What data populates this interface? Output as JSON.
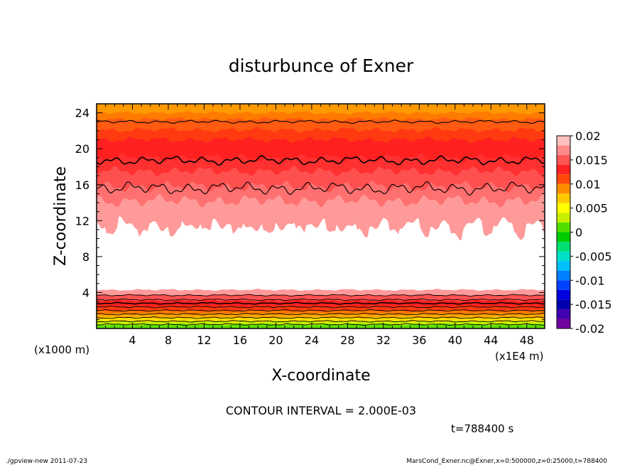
{
  "chart_data": {
    "type": "heatmap",
    "title": "disturbunce of Exner",
    "xlabel": "X-coordinate",
    "ylabel": "Z-coordinate",
    "x_unit": "(x1E4 m)",
    "y_unit": "(x1000 m)",
    "x_ticks": [
      "4",
      "8",
      "12",
      "16",
      "20",
      "24",
      "28",
      "32",
      "36",
      "40",
      "44",
      "48"
    ],
    "y_ticks": [
      "4",
      "8",
      "12",
      "16",
      "20",
      "24"
    ],
    "xlim": [
      0,
      50
    ],
    "ylim": [
      0,
      25
    ],
    "colorbar": {
      "labels": [
        "0.02",
        "0.015",
        "0.01",
        "0.005",
        "0",
        "-0.005",
        "-0.01",
        "-0.015",
        "-0.02"
      ],
      "levels": [
        {
          "from": 0.018,
          "to": 0.02,
          "color": "#ffc0c0"
        },
        {
          "from": 0.016,
          "to": 0.018,
          "color": "#ff8a8a"
        },
        {
          "from": 0.014,
          "to": 0.016,
          "color": "#ff5555"
        },
        {
          "from": 0.012,
          "to": 0.014,
          "color": "#ff2222"
        },
        {
          "from": 0.01,
          "to": 0.012,
          "color": "#ff4a0a"
        },
        {
          "from": 0.008,
          "to": 0.01,
          "color": "#ff8c00"
        },
        {
          "from": 0.006,
          "to": 0.008,
          "color": "#ffc800"
        },
        {
          "from": 0.004,
          "to": 0.006,
          "color": "#ffff00"
        },
        {
          "from": 0.002,
          "to": 0.004,
          "color": "#c8f000"
        },
        {
          "from": 0.0,
          "to": 0.002,
          "color": "#50e000"
        },
        {
          "from": -0.002,
          "to": 0.0,
          "color": "#00cc00"
        },
        {
          "from": -0.004,
          "to": -0.002,
          "color": "#00e070"
        },
        {
          "from": -0.006,
          "to": -0.004,
          "color": "#00e0c8"
        },
        {
          "from": -0.008,
          "to": -0.006,
          "color": "#00c0ff"
        },
        {
          "from": -0.01,
          "to": -0.008,
          "color": "#0080ff"
        },
        {
          "from": -0.012,
          "to": -0.01,
          "color": "#0040ff"
        },
        {
          "from": -0.014,
          "to": -0.012,
          "color": "#0000e0"
        },
        {
          "from": -0.016,
          "to": -0.014,
          "color": "#0000b0"
        },
        {
          "from": -0.018,
          "to": -0.016,
          "color": "#4000b0"
        },
        {
          "from": -0.02,
          "to": -0.018,
          "color": "#7000a0"
        }
      ]
    },
    "upper_bands": [
      {
        "z": 25.0,
        "color": "#ff9900"
      },
      {
        "z": 24.0,
        "color": "#ff7a00"
      },
      {
        "z": 23.3,
        "color": "#ff5a10"
      },
      {
        "z": 22.1,
        "color": "#ff3a10"
      },
      {
        "z": 21.0,
        "color": "#ff2020"
      },
      {
        "z": 19.0,
        "color": "#ff3030"
      },
      {
        "z": 17.5,
        "color": "#ff5050"
      },
      {
        "z": 15.8,
        "color": "#ff7070"
      },
      {
        "z": 14.2,
        "color": "#ff9a9a"
      }
    ],
    "upper_white_boundary_z": 11.6,
    "upper_contour_levels_z": [
      23.0,
      18.7,
      15.6
    ],
    "lower_bands": [
      {
        "z": 4.3,
        "color": "#ff9a9a"
      },
      {
        "z": 3.7,
        "color": "#ff5050"
      },
      {
        "z": 3.1,
        "color": "#ff2020"
      },
      {
        "z": 2.5,
        "color": "#ff3a10"
      },
      {
        "z": 2.0,
        "color": "#ff7a00"
      },
      {
        "z": 1.6,
        "color": "#ffaa00"
      },
      {
        "z": 1.2,
        "color": "#ffdd00"
      },
      {
        "z": 0.8,
        "color": "#c8f000"
      },
      {
        "z": 0.45,
        "color": "#60e000"
      }
    ],
    "lower_contour_levels_z": [
      3.7,
      3.2,
      2.8,
      2.4,
      2.0,
      1.6,
      1.2,
      0.8,
      0.45
    ]
  },
  "annotation": {
    "contour_interval": "CONTOUR INTERVAL = 2.000E-03",
    "time": "t=788400 s"
  },
  "footer": {
    "left": "./gpview-new   2011-07-23",
    "right": "MarsCond_Exner.nc@Exner,x=0:500000,z=0:25000,t=788400"
  }
}
